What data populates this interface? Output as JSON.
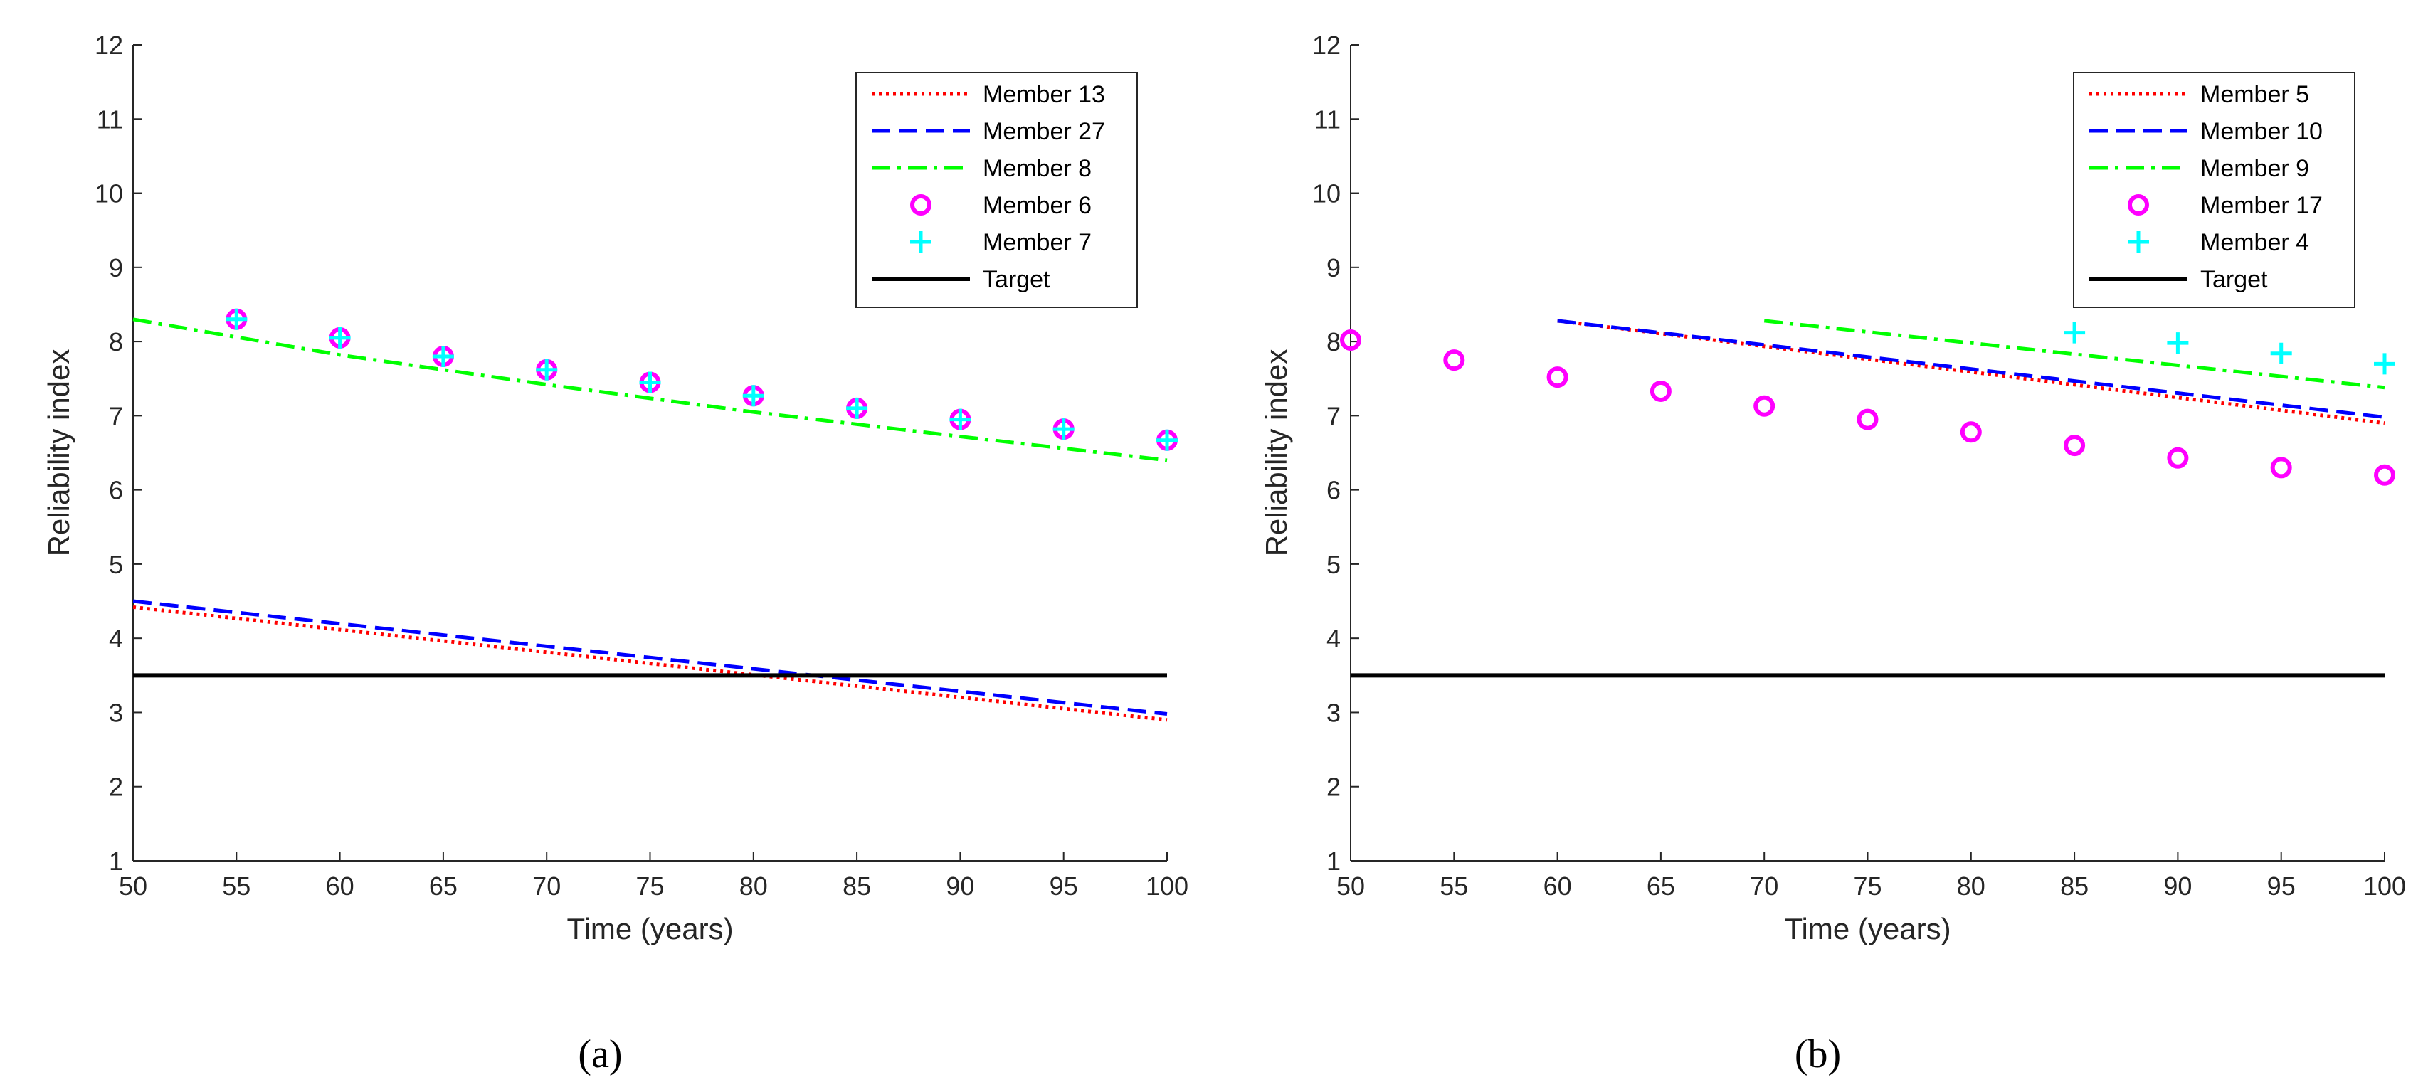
{
  "chart_data": [
    {
      "type": "line",
      "panel_label": "(a)",
      "xlabel": "Time (years)",
      "ylabel": "Reliability index",
      "xlim": [
        50,
        100
      ],
      "ylim": [
        1,
        12
      ],
      "xticks": [
        50,
        55,
        60,
        65,
        70,
        75,
        80,
        85,
        90,
        95,
        100
      ],
      "yticks": [
        1,
        2,
        3,
        4,
        5,
        6,
        7,
        8,
        9,
        10,
        11,
        12
      ],
      "legend_position": "top-right",
      "series": [
        {
          "name": "Member 13",
          "style": "dotted",
          "color": "#ff0000",
          "x": [
            50,
            100
          ],
          "y": [
            4.42,
            2.9
          ]
        },
        {
          "name": "Member 27",
          "style": "dashed",
          "color": "#0000ff",
          "x": [
            50,
            100
          ],
          "y": [
            4.5,
            2.98
          ]
        },
        {
          "name": "Member 8",
          "style": "dashdot",
          "color": "#00ff00",
          "x": [
            50,
            60,
            70,
            80,
            90,
            100
          ],
          "y": [
            8.3,
            7.82,
            7.42,
            7.05,
            6.72,
            6.4
          ]
        },
        {
          "name": "Member 6",
          "style": "circle",
          "color": "#ff00ff",
          "x": [
            55,
            60,
            65,
            70,
            75,
            80,
            85,
            90,
            95,
            100
          ],
          "y": [
            8.3,
            8.05,
            7.8,
            7.62,
            7.45,
            7.27,
            7.1,
            6.95,
            6.82,
            6.67
          ]
        },
        {
          "name": "Member 7",
          "style": "plus",
          "color": "#00ffff",
          "x": [
            55,
            60,
            65,
            70,
            75,
            80,
            85,
            90,
            95,
            100
          ],
          "y": [
            8.3,
            8.05,
            7.8,
            7.62,
            7.45,
            7.27,
            7.1,
            6.95,
            6.82,
            6.67
          ]
        },
        {
          "name": "Target",
          "style": "solid",
          "color": "#000000",
          "x": [
            50,
            100
          ],
          "y": [
            3.5,
            3.5
          ]
        }
      ]
    },
    {
      "type": "line",
      "panel_label": "(b)",
      "xlabel": "Time (years)",
      "ylabel": "Reliability index",
      "xlim": [
        50,
        100
      ],
      "ylim": [
        1,
        12
      ],
      "xticks": [
        50,
        55,
        60,
        65,
        70,
        75,
        80,
        85,
        90,
        95,
        100
      ],
      "yticks": [
        1,
        2,
        3,
        4,
        5,
        6,
        7,
        8,
        9,
        10,
        11,
        12
      ],
      "legend_position": "top-right",
      "series": [
        {
          "name": "Member 5",
          "style": "dotted",
          "color": "#ff0000",
          "x": [
            60,
            100
          ],
          "y": [
            8.28,
            6.9
          ]
        },
        {
          "name": "Member 10",
          "style": "dashed",
          "color": "#0000ff",
          "x": [
            60,
            100
          ],
          "y": [
            8.28,
            6.98
          ]
        },
        {
          "name": "Member 9",
          "style": "dashdot",
          "color": "#00ff00",
          "x": [
            70,
            100
          ],
          "y": [
            8.28,
            7.38
          ]
        },
        {
          "name": "Member 17",
          "style": "circle",
          "color": "#ff00ff",
          "x": [
            50,
            55,
            60,
            65,
            70,
            75,
            80,
            85,
            90,
            95,
            100
          ],
          "y": [
            8.02,
            7.75,
            7.52,
            7.33,
            7.13,
            6.95,
            6.78,
            6.6,
            6.43,
            6.3,
            6.2
          ]
        },
        {
          "name": "Member 4",
          "style": "plus",
          "color": "#00ffff",
          "x": [
            85,
            90,
            95,
            100
          ],
          "y": [
            8.12,
            7.98,
            7.84,
            7.7
          ]
        },
        {
          "name": "Target",
          "style": "solid",
          "color": "#000000",
          "x": [
            50,
            100
          ],
          "y": [
            3.5,
            3.5
          ]
        }
      ]
    }
  ]
}
